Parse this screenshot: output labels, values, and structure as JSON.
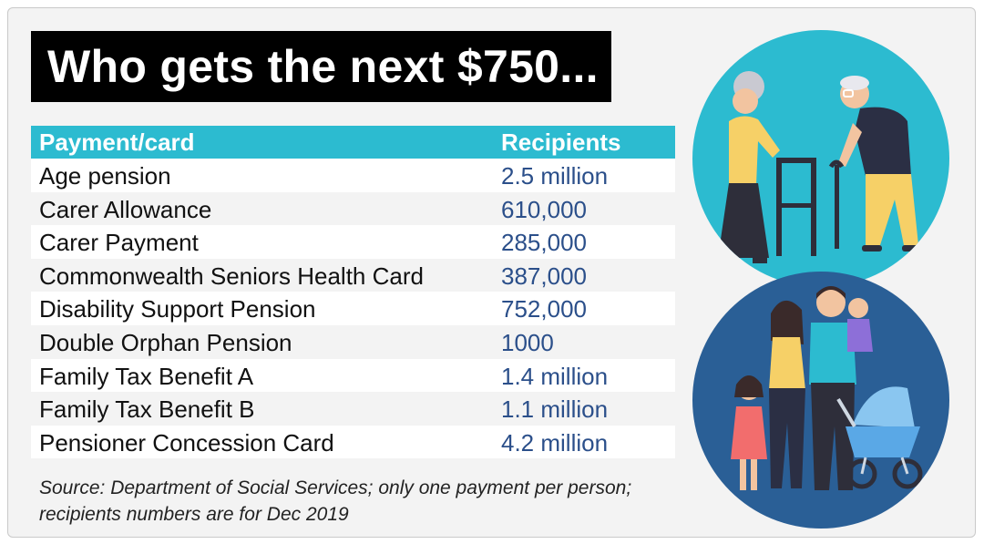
{
  "title": "Who gets the next $750...",
  "table": {
    "headers": [
      "Payment/card",
      "Recipients"
    ],
    "rows": [
      {
        "payment": "Age pension",
        "recipients": "2.5 million"
      },
      {
        "payment": "Carer Allowance",
        "recipients": "610,000"
      },
      {
        "payment": "Carer Payment",
        "recipients": "285,000"
      },
      {
        "payment": "Commonwealth Seniors Health Card",
        "recipients": "387,000"
      },
      {
        "payment": "Disability Support Pension",
        "recipients": "752,000"
      },
      {
        "payment": "Double Orphan Pension",
        "recipients": "1000"
      },
      {
        "payment": "Family Tax Benefit A",
        "recipients": "1.4 million"
      },
      {
        "payment": "Family Tax Benefit B",
        "recipients": "1.1 million"
      },
      {
        "payment": "Pensioner Concession Card",
        "recipients": "4.2 million"
      }
    ]
  },
  "source_line1": "Source: Department of Social Services; only one payment per person;",
  "source_line2": "recipients numbers are for Dec 2019",
  "colors": {
    "header_bg": "#2cbbd0",
    "value_text": "#2b4f8a",
    "title_bg": "#000000",
    "circle_top": "#2cbbd0",
    "circle_bottom": "#2a5f96"
  },
  "illustrations": [
    "elderly-couple-illustration",
    "family-illustration"
  ]
}
